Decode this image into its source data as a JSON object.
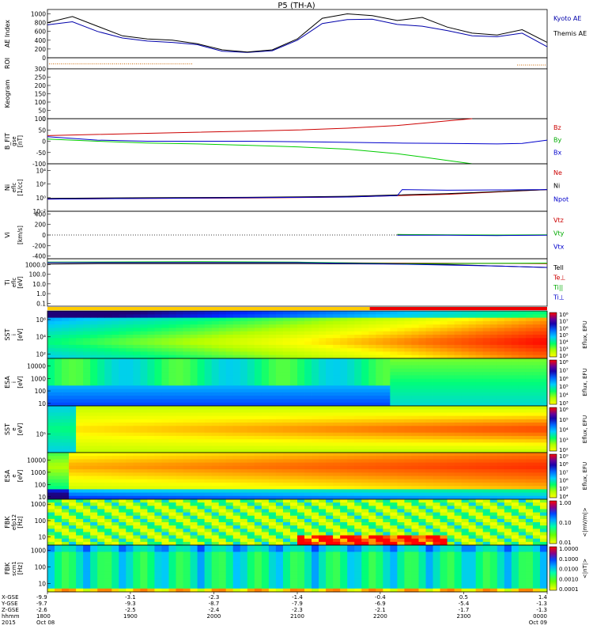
{
  "title": "P5 (TH-A)",
  "chart_data": [
    {
      "type": "line",
      "panel": "ae-index",
      "ylabel": "AE Index",
      "ylim": [
        0,
        1100
      ],
      "ticks": [
        "1000",
        "800",
        "600",
        "400",
        "200",
        "0"
      ],
      "tick_values": [
        1000,
        800,
        600,
        400,
        200,
        0
      ],
      "series": [
        {
          "name": "Kyoto AE",
          "color": "#0000aa",
          "x": [
            0,
            0.05,
            0.1,
            0.15,
            0.2,
            0.25,
            0.3,
            0.35,
            0.4,
            0.45,
            0.5,
            0.55,
            0.6,
            0.65,
            0.7,
            0.75,
            0.8,
            0.85,
            0.9,
            0.95,
            1
          ],
          "values": [
            750,
            820,
            600,
            450,
            380,
            350,
            300,
            150,
            120,
            160,
            400,
            780,
            870,
            880,
            760,
            720,
            620,
            500,
            480,
            560,
            250
          ]
        },
        {
          "name": "Themis AE",
          "color": "#000000",
          "x": [
            0,
            0.05,
            0.1,
            0.15,
            0.2,
            0.25,
            0.3,
            0.35,
            0.4,
            0.45,
            0.5,
            0.55,
            0.6,
            0.65,
            0.7,
            0.75,
            0.8,
            0.85,
            0.9,
            0.95,
            1
          ],
          "values": [
            800,
            940,
            720,
            500,
            430,
            400,
            320,
            180,
            130,
            180,
            430,
            900,
            1000,
            960,
            850,
            920,
            700,
            560,
            520,
            640,
            350
          ]
        }
      ]
    },
    {
      "type": "line",
      "panel": "roi",
      "ylabel": "ROI"
    },
    {
      "type": "heatmap",
      "panel": "keogram",
      "ylabel": "Keogram",
      "ticks": [
        "300",
        "250",
        "200",
        "150",
        "100",
        "50",
        "0"
      ],
      "tick_values": [
        300,
        250,
        200,
        150,
        100,
        50,
        0
      ],
      "ylim": [
        0,
        300
      ]
    },
    {
      "type": "line",
      "panel": "b-field",
      "ylabel": "B_FIT",
      "unit": "[nT]",
      "sublabel": "gse",
      "ticks": [
        "100",
        "50",
        "0",
        "-50",
        "-100"
      ],
      "tick_values": [
        100,
        50,
        0,
        -50,
        -100
      ],
      "ylim": [
        -100,
        100
      ],
      "series": [
        {
          "name": "Bz",
          "color": "#cc0000",
          "x": [
            0,
            0.1,
            0.2,
            0.3,
            0.4,
            0.5,
            0.6,
            0.7,
            0.75,
            0.8,
            0.85
          ],
          "values": [
            25,
            30,
            35,
            40,
            45,
            50,
            58,
            70,
            80,
            90,
            100
          ]
        },
        {
          "name": "By",
          "color": "#00cc00",
          "x": [
            0,
            0.1,
            0.2,
            0.3,
            0.4,
            0.5,
            0.6,
            0.7,
            0.75,
            0.8,
            0.85
          ],
          "values": [
            10,
            0,
            -8,
            -12,
            -18,
            -25,
            -35,
            -55,
            -70,
            -85,
            -100
          ]
        },
        {
          "name": "Bx",
          "color": "#0000cc",
          "x": [
            0,
            0.1,
            0.2,
            0.3,
            0.4,
            0.5,
            0.6,
            0.7,
            0.8,
            0.9,
            0.95,
            1
          ],
          "values": [
            20,
            5,
            0,
            0,
            0,
            -2,
            -5,
            -8,
            -10,
            -12,
            -10,
            5
          ]
        }
      ]
    },
    {
      "type": "line",
      "panel": "density",
      "ylabel": "Ni",
      "unit": "[1/cc]",
      "sublabel": "eflc",
      "ticks": [
        "10⁴",
        "10²",
        "10⁰",
        "10⁻²"
      ],
      "tick_values": [
        4,
        2,
        0,
        -2
      ],
      "ylim": [
        -2,
        5
      ],
      "series": [
        {
          "name": "Ne",
          "color": "#cc0000",
          "x": [
            0,
            0.2,
            0.4,
            0.6,
            0.7,
            0.8,
            1
          ],
          "values": [
            -0.2,
            -0.1,
            -0.05,
            0.1,
            0.3,
            0.5,
            1.2
          ]
        },
        {
          "name": "Ni",
          "color": "#000000",
          "x": [
            0,
            0.2,
            0.4,
            0.6,
            0.7,
            0.8,
            1
          ],
          "values": [
            -0.1,
            0,
            0.05,
            0.2,
            0.4,
            0.6,
            1.2
          ]
        },
        {
          "name": "Npot",
          "color": "#0000cc",
          "x": [
            0,
            0.2,
            0.4,
            0.6,
            0.7,
            0.71,
            0.8,
            1
          ],
          "values": [
            -0.2,
            -0.1,
            0,
            0.1,
            0.3,
            1.2,
            1.1,
            1.2
          ]
        }
      ]
    },
    {
      "type": "line",
      "panel": "velocity",
      "ylabel": "Vi",
      "unit": "[km/s]",
      "ticks": [
        "400",
        "200",
        "0",
        "-200",
        "-400"
      ],
      "tick_values": [
        400,
        200,
        0,
        -200,
        -400
      ],
      "ylim": [
        -450,
        450
      ],
      "series": [
        {
          "name": "Vtz",
          "color": "#cc0000",
          "x": [
            0.7,
            0.8,
            0.9,
            1
          ],
          "values": [
            5,
            0,
            -5,
            0
          ]
        },
        {
          "name": "Vty",
          "color": "#00cc00",
          "x": [
            0.7,
            0.8,
            0.9,
            1
          ],
          "values": [
            10,
            5,
            0,
            5
          ]
        },
        {
          "name": "Vtx",
          "color": "#0000cc",
          "x": [
            0.7,
            0.8,
            0.9,
            1
          ],
          "values": [
            -5,
            -5,
            -10,
            -5
          ]
        }
      ]
    },
    {
      "type": "line",
      "panel": "temperature",
      "ylabel": "Ti",
      "unit": "[eV]",
      "sublabel": "eflc",
      "ticks": [
        "1000.0",
        "100.0",
        "10.0",
        "1.0",
        "0.1"
      ],
      "tick_values": [
        3,
        2,
        1,
        0,
        -1
      ],
      "ylim": [
        -1.3,
        3.6
      ],
      "series": [
        {
          "name": "Tell",
          "color": "#000000",
          "x": [
            0,
            0.1,
            0.3,
            0.5,
            0.7,
            0.8,
            0.9,
            1
          ],
          "values": [
            3.05,
            3.1,
            3.1,
            3.1,
            3.05,
            3.0,
            2.85,
            2.7
          ]
        },
        {
          "name": "Te⊥",
          "color": "#cc0000",
          "x": [
            0,
            0.3,
            0.5,
            0.7,
            1
          ],
          "values": [
            3.2,
            3.2,
            3.2,
            3.15,
            3.1
          ]
        },
        {
          "name": "Ti||",
          "color": "#00cc00",
          "x": [
            0,
            0.3,
            0.5,
            0.7,
            0.8,
            1
          ],
          "values": [
            3.25,
            3.3,
            3.25,
            3.1,
            3.1,
            3.15
          ]
        },
        {
          "name": "Ti⊥",
          "color": "#0000cc",
          "x": [
            0,
            0.3,
            0.5,
            0.7,
            0.8,
            0.9,
            1
          ],
          "values": [
            3.2,
            3.2,
            3.2,
            3.05,
            2.95,
            2.85,
            2.7
          ]
        }
      ]
    },
    {
      "type": "heatmap",
      "panel": "sst-ion",
      "ylabel": "SST",
      "unit": "[eV]",
      "sublabel": "i",
      "ticks": [
        "10⁶",
        "10⁴",
        "10²"
      ],
      "tick_values": [
        6,
        4,
        2
      ],
      "ylim": [
        1.5,
        7
      ],
      "colorbar": {
        "label": "Eflux, EFU",
        "ticks": [
          "10⁸",
          "10⁷",
          "10⁶",
          "10⁵",
          "10⁴",
          "10³",
          "10²"
        ]
      }
    },
    {
      "type": "heatmap",
      "panel": "esa-ion",
      "ylabel": "ESA",
      "unit": "[eV]",
      "sublabel": "i",
      "ticks": [
        "10000",
        "1000",
        "100",
        "10"
      ],
      "tick_values": [
        4,
        3,
        2,
        1
      ],
      "ylim": [
        0.8,
        4.6
      ],
      "colorbar": {
        "label": "Eflux, EFU",
        "ticks": [
          "10⁸",
          "10⁷",
          "10⁶",
          "10⁵",
          "10⁴",
          "10³"
        ]
      }
    },
    {
      "type": "heatmap",
      "panel": "sst-electron",
      "ylabel": "SST",
      "unit": "[eV]",
      "sublabel": "e",
      "ticks": [
        "10⁵"
      ],
      "tick_values": [
        5
      ],
      "ylim": [
        4,
        6.5
      ],
      "colorbar": {
        "label": "Eflux, EFU",
        "ticks": [
          "10⁶",
          "10⁵",
          "10⁴",
          "10³",
          "10²"
        ]
      }
    },
    {
      "type": "heatmap",
      "panel": "esa-electron",
      "ylabel": "ESA",
      "unit": "[eV]",
      "sublabel": "e",
      "ticks": [
        "10000",
        "1000",
        "100",
        "10"
      ],
      "tick_values": [
        4,
        3,
        2,
        1
      ],
      "ylim": [
        0.8,
        4.6
      ],
      "colorbar": {
        "label": "Eflux, EFU",
        "ticks": [
          "10⁹",
          "10⁸",
          "10⁷",
          "10⁶",
          "10⁵",
          "10⁴"
        ]
      }
    },
    {
      "type": "heatmap",
      "panel": "fbk-e12",
      "ylabel": "FBK",
      "unit": "[Hz]",
      "sublabel": "efp12",
      "ticks": [
        "1000",
        "100",
        "10"
      ],
      "tick_values": [
        3,
        2,
        1
      ],
      "ylim": [
        0.5,
        3.3
      ],
      "colorbar": {
        "label": "<|mV/m|>",
        "ticks": [
          "1.00",
          "0.10",
          "0.01"
        ]
      }
    },
    {
      "type": "heatmap",
      "panel": "fbk-scm",
      "ylabel": "FBK",
      "unit": "[Hz]",
      "sublabel": "scm1",
      "ticks": [
        "1000",
        "100",
        "10"
      ],
      "tick_values": [
        3,
        2,
        1
      ],
      "ylim": [
        0.5,
        3.3
      ],
      "colorbar": {
        "label": "<|nT|>",
        "ticks": [
          "1.0000",
          "0.1000",
          "0.0100",
          "0.0010",
          "0.0001"
        ]
      }
    }
  ],
  "legend": {
    "kyoto": "Kyoto AE",
    "themis": "Themis AE",
    "bz": "Bz",
    "by": "By",
    "bx": "Bx",
    "ne": "Ne",
    "ni": "Ni",
    "npot": "Npot",
    "vtz": "Vtz",
    "vty": "Vty",
    "vtx": "Vtx",
    "tell": "Tell",
    "teperp": "Te⊥",
    "tipar": "Ti||",
    "tiperp": "Ti⊥"
  },
  "x_axis": {
    "row_labels": [
      "X-GSE",
      "Y-GSE",
      "Z-GSE",
      "hhmm",
      "2015"
    ],
    "ticks": [
      {
        "frac": 0.0,
        "vals": [
          "-9.9",
          "-9.7",
          "-2.6",
          "1800",
          "Oct 08"
        ]
      },
      {
        "frac": 0.166,
        "vals": [
          "-3.1",
          "-9.3",
          "-2.5",
          "1900",
          ""
        ]
      },
      {
        "frac": 0.333,
        "vals": [
          "-2.3",
          "-8.7",
          "-2.4",
          "2000",
          ""
        ]
      },
      {
        "frac": 0.5,
        "vals": [
          "-1.4",
          "-7.9",
          "-2.3",
          "2100",
          ""
        ]
      },
      {
        "frac": 0.666,
        "vals": [
          "-0.4",
          "-6.9",
          "-2.1",
          "2200",
          ""
        ]
      },
      {
        "frac": 0.833,
        "vals": [
          "0.5",
          "-5.4",
          "-1.7",
          "2300",
          ""
        ]
      },
      {
        "frac": 1.0,
        "vals": [
          "1.4",
          "-1.3",
          "-1.3",
          "0000",
          "Oct 09"
        ]
      }
    ]
  }
}
